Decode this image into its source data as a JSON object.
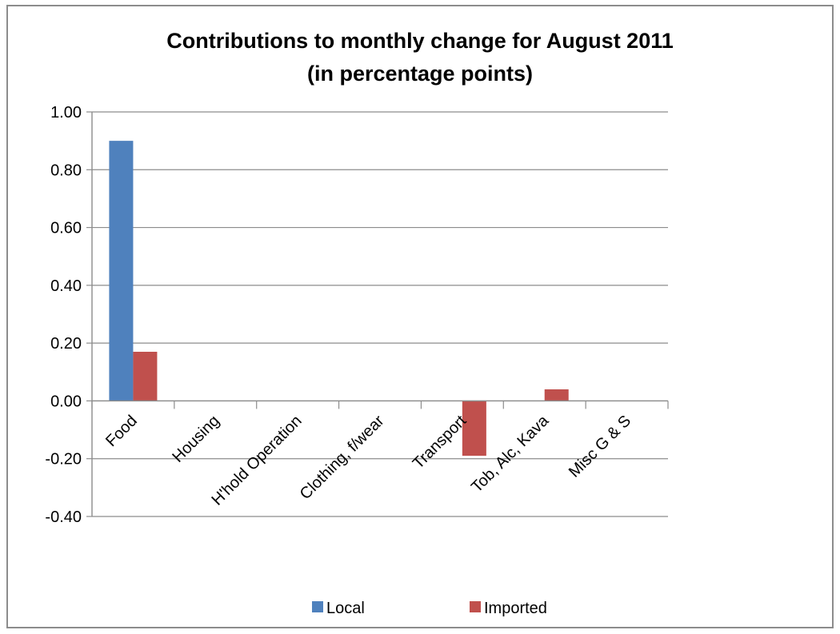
{
  "chart_data": {
    "type": "bar",
    "title": "Contributions to monthly change for  August 2011",
    "subtitle": "(in percentage points)",
    "categories": [
      "Food",
      "Housing",
      "H'hold Operation",
      "Clothing, f/wear",
      "Transport",
      "Tob, Alc, Kava",
      "Misc G & S"
    ],
    "series": [
      {
        "name": "Local",
        "color": "#4f81bd",
        "values": [
          0.9,
          0.0,
          0.0,
          0.0,
          0.0,
          0.0,
          0.0
        ]
      },
      {
        "name": "Imported",
        "color": "#c0504d",
        "values": [
          0.17,
          0.0,
          0.0,
          0.0,
          -0.19,
          0.04,
          0.0
        ]
      }
    ],
    "ylim": [
      -0.4,
      1.0
    ],
    "yticks": [
      "1.00",
      "0.80",
      "0.60",
      "0.40",
      "0.20",
      "0.00",
      "-0.20",
      "-0.40"
    ],
    "ytick_values": [
      1.0,
      0.8,
      0.6,
      0.4,
      0.2,
      0.0,
      -0.2,
      -0.4
    ],
    "grid": true,
    "legend_position": "bottom",
    "xlabel": "",
    "ylabel": ""
  }
}
